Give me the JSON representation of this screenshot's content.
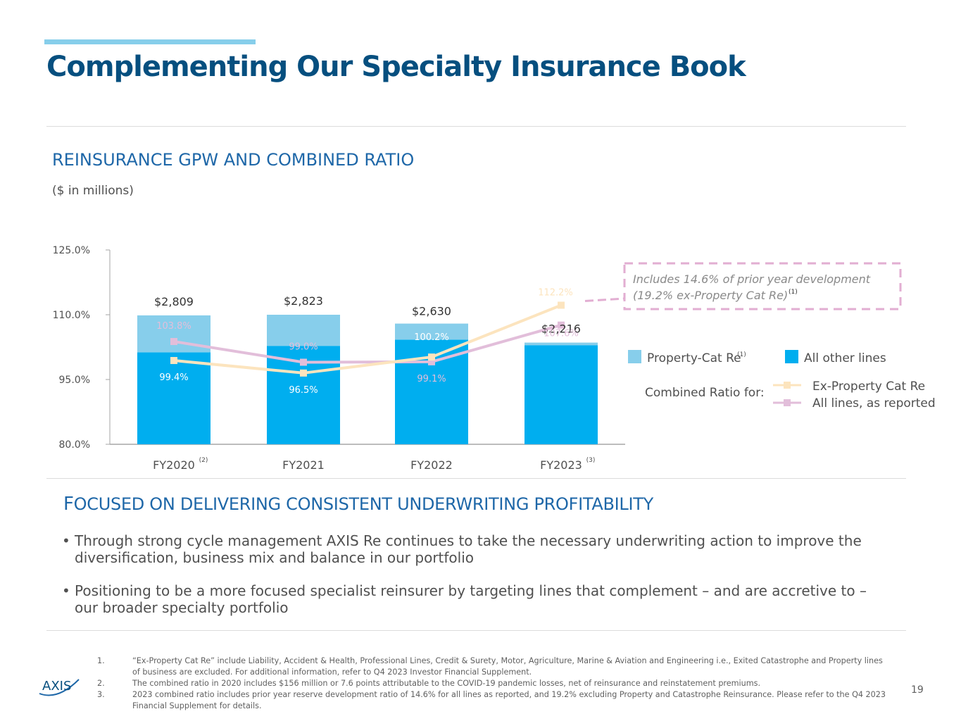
{
  "title": "Complementing Our Specialty Insurance Book",
  "section1_title": "REINSURANCE GPW AND COMBINED RATIO",
  "units_label": "($ in millions)",
  "section2": {
    "cap": "F",
    "rest": "OCUSED ON DELIVERING CONSISTENT UNDERWRITING PROFITABILITY"
  },
  "bullets": [
    {
      "marker": "•",
      "text": "Through strong cycle management AXIS Re continues to take the necessary underwriting action to improve the diversification, business mix and balance in our portfolio"
    },
    {
      "marker": "•",
      "text": "Positioning to be a more focused specialist reinsurer by targeting lines that complement – and are accretive to – our broader specialty portfolio"
    }
  ],
  "footnotes": [
    {
      "num": "1.",
      "text": "“Ex-Property Cat Re” include Liability, Accident & Health, Professional Lines, Credit & Surety, Motor, Agriculture, Marine & Aviation and Engineering i.e., Exited Catastrophe and Property lines of business are excluded. For additional information, refer to Q4 2023 Investor Financial Supplement."
    },
    {
      "num": "2.",
      "text": "The combined ratio in 2020 includes $156 million or 7.6 points attributable to the COVID-19 pandemic losses, net of reinsurance and reinstatement premiums."
    },
    {
      "num": "3.",
      "text": "2023 combined ratio includes prior year reserve development ratio of 14.6% for all lines as reported, and 19.2% excluding Property and Catastrophe Reinsurance. Please refer to the Q4 2023 Financial Supplement for details."
    }
  ],
  "logo_text": "AXIS",
  "page_number": "19",
  "colors": {
    "title": "#064F7F",
    "section": "#1E67A8",
    "property_cat": "#87CEEB",
    "other_lines": "#00AEEF",
    "ex_cat_line": "#FCE4BE",
    "all_lines": "#E2BEDA",
    "callout_border": "#E2AED2"
  },
  "chart_data": {
    "type": "bar",
    "stacked": true,
    "categories": [
      "FY2020",
      "FY2021",
      "FY2022",
      "FY2023"
    ],
    "category_superscripts": [
      "(2)",
      "",
      "",
      "(3)"
    ],
    "ylim": [
      80,
      125
    ],
    "yticks": [
      "125.0%",
      "110.0%",
      "95.0%",
      "80.0%"
    ],
    "ytick_values": [
      125,
      110,
      95,
      80
    ],
    "gpw_labels": [
      "$2,809",
      "$2,823",
      "$2,630",
      "$2,216"
    ],
    "bar_series": [
      {
        "name": "All other lines",
        "values": [
          2005,
          2145,
          2280,
          2160
        ]
      },
      {
        "name": "Property-Cat Re",
        "superscript": "(1)",
        "values": [
          804,
          678,
          350,
          56
        ]
      }
    ],
    "line_series": [
      {
        "name": "Ex-Property Cat Re",
        "values": [
          99.4,
          96.5,
          100.2,
          112.2
        ],
        "labels": [
          "99.4%",
          "96.5%",
          "100.2%",
          "112.2%"
        ]
      },
      {
        "name": "All lines, as reported",
        "values": [
          103.8,
          99.0,
          99.1,
          107.6
        ],
        "labels": [
          "103.8%",
          "99.0%",
          "99.1%",
          "107.6%"
        ]
      }
    ],
    "legend": {
      "property_cat": "Property-Cat Re",
      "property_cat_sup": "(1)",
      "other_lines": "All other lines",
      "combined_ratio_for": "Combined Ratio for:",
      "ex_cat": "Ex-Property Cat Re",
      "all_lines": "All lines, as reported"
    },
    "callout": {
      "line1": "Includes 14.6% of prior year development",
      "line2": "(19.2% ex-Property Cat Re)",
      "sup": "(1)"
    },
    "grid": false
  }
}
